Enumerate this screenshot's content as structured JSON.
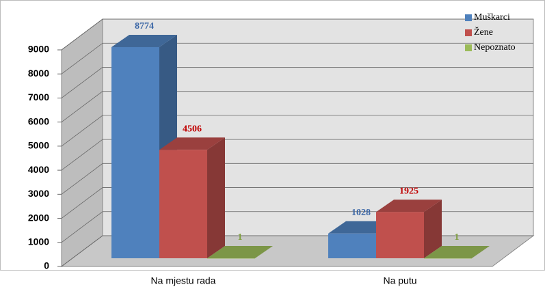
{
  "chart_data": {
    "type": "bar3d",
    "categories": [
      "Na mjestu rada",
      "Na putu"
    ],
    "series": [
      {
        "name": "Muškarci",
        "color": "#4f81bd",
        "label_color": "#3a66a6",
        "values": [
          8774,
          1028
        ]
      },
      {
        "name": "Žene",
        "color": "#c0504d",
        "label_color": "#c00000",
        "values": [
          4506,
          1925
        ]
      },
      {
        "name": "Nepoznato",
        "color": "#9bbb59",
        "label_color": "#7f9f3f",
        "values": [
          1,
          1
        ]
      }
    ],
    "ylim": [
      0,
      9000
    ],
    "yticks": [
      0,
      1000,
      2000,
      3000,
      4000,
      5000,
      6000,
      7000,
      8000,
      9000
    ],
    "grid": true,
    "legend": "top-right"
  }
}
